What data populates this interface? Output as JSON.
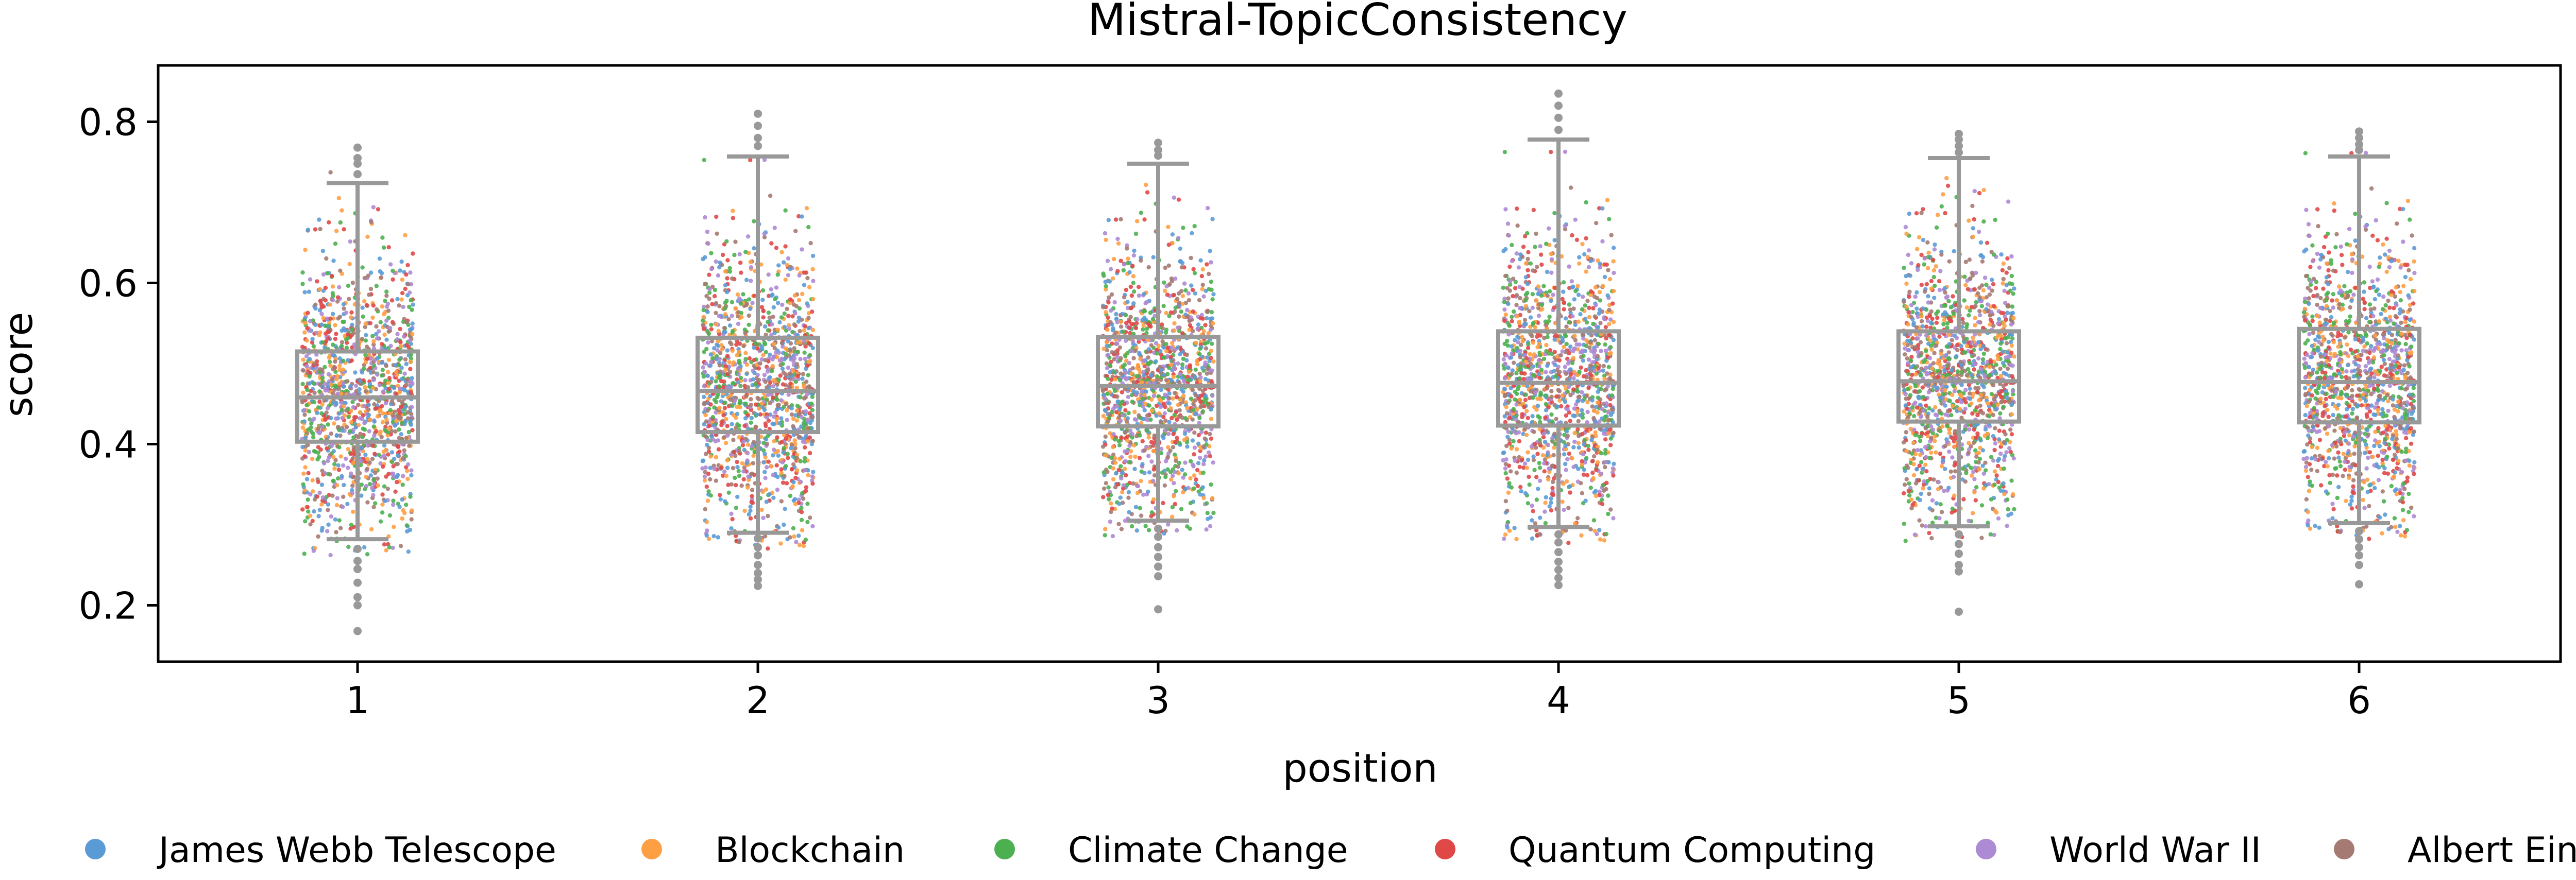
{
  "chart_data": {
    "type": "box_strip",
    "title": "Mistral-TopicConsistency",
    "xlabel": "position",
    "ylabel": "score",
    "categories": [
      "1",
      "2",
      "3",
      "4",
      "5",
      "6"
    ],
    "yticks": [
      "0.2",
      "0.4",
      "0.6",
      "0.8"
    ],
    "ylim": [
      0.13,
      0.87
    ],
    "box_color": "#999999",
    "boxes": [
      {
        "position": "1",
        "q1": 0.403,
        "median": 0.458,
        "q3": 0.515,
        "whisker_low": 0.282,
        "whisker_high": 0.724,
        "outliers": [
          0.27,
          0.255,
          0.245,
          0.228,
          0.21,
          0.2,
          0.168,
          0.735,
          0.748,
          0.755,
          0.768
        ]
      },
      {
        "position": "2",
        "q1": 0.415,
        "median": 0.466,
        "q3": 0.532,
        "whisker_low": 0.29,
        "whisker_high": 0.757,
        "outliers": [
          0.283,
          0.272,
          0.262,
          0.25,
          0.24,
          0.232,
          0.224,
          0.77,
          0.78,
          0.795,
          0.81
        ]
      },
      {
        "position": "3",
        "q1": 0.422,
        "median": 0.472,
        "q3": 0.533,
        "whisker_low": 0.305,
        "whisker_high": 0.748,
        "outliers": [
          0.295,
          0.285,
          0.272,
          0.26,
          0.248,
          0.236,
          0.195,
          0.758,
          0.765,
          0.774
        ]
      },
      {
        "position": "4",
        "q1": 0.423,
        "median": 0.476,
        "q3": 0.54,
        "whisker_low": 0.297,
        "whisker_high": 0.778,
        "outliers": [
          0.288,
          0.278,
          0.266,
          0.254,
          0.244,
          0.234,
          0.225,
          0.79,
          0.805,
          0.82,
          0.835
        ]
      },
      {
        "position": "5",
        "q1": 0.428,
        "median": 0.478,
        "q3": 0.54,
        "whisker_low": 0.298,
        "whisker_high": 0.755,
        "outliers": [
          0.288,
          0.276,
          0.264,
          0.25,
          0.242,
          0.192,
          0.762,
          0.77,
          0.778,
          0.785
        ]
      },
      {
        "position": "6",
        "q1": 0.427,
        "median": 0.477,
        "q3": 0.543,
        "whisker_low": 0.302,
        "whisker_high": 0.757,
        "outliers": [
          0.292,
          0.282,
          0.272,
          0.262,
          0.25,
          0.226,
          0.765,
          0.772,
          0.78,
          0.788
        ]
      }
    ],
    "strip": {
      "description": "jittered per-topic scores; approx 1300 points per position",
      "points_per_position": 1300,
      "series": [
        {
          "name": "James Webb Telescope",
          "color": "#5b9bd5"
        },
        {
          "name": "Blockchain",
          "color": "#ff9f43"
        },
        {
          "name": "Climate Change",
          "color": "#4cb050"
        },
        {
          "name": "Quantum Computing",
          "color": "#e04848"
        },
        {
          "name": "World War II",
          "color": "#ad8ad4"
        },
        {
          "name": "Albert Einstein",
          "color": "#a57a72"
        }
      ]
    },
    "legend_position": "bottom"
  }
}
